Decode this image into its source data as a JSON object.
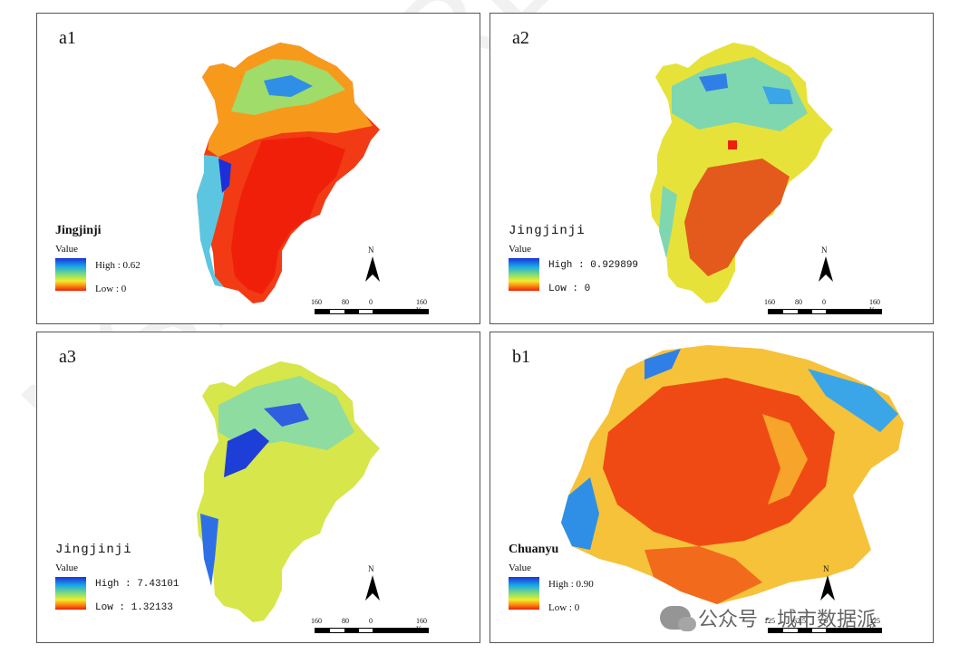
{
  "panels": [
    {
      "label": "a1",
      "region": "Jingjinji",
      "value_label": "Value",
      "high": "High : 0.62",
      "low": "Low : 0",
      "north": "N",
      "scale_ticks": [
        "160",
        "80",
        "0",
        "160 Km"
      ]
    },
    {
      "label": "a2",
      "region": "Jingjinji",
      "value_label": "Value",
      "high": "High : 0.929899",
      "low": "Low : 0",
      "north": "N",
      "scale_ticks": [
        "160",
        "80",
        "0",
        "160 Km"
      ]
    },
    {
      "label": "a3",
      "region": "Jingjinji",
      "value_label": "Value",
      "high": "High : 7.43101",
      "low": "Low : 1.32133",
      "north": "N",
      "scale_ticks": [
        "160",
        "80",
        "0",
        "160 Km"
      ]
    },
    {
      "label": "b1",
      "region": "Chuanyu",
      "value_label": "Value",
      "high": "High : 0.90",
      "low": "Low : 0",
      "north": "N",
      "scale_ticks": [
        "125",
        "62.5",
        "0",
        "125 Km"
      ]
    }
  ],
  "colors": {
    "high": "#1d2fd8",
    "mid": "#7fdc7a",
    "yellow": "#f2ec2a",
    "low": "#f01f0a"
  },
  "watermark": {
    "text": "公众号 · 城市数据派",
    "icon": "wechat-icon"
  },
  "background_watermark": "NSFOR RE"
}
